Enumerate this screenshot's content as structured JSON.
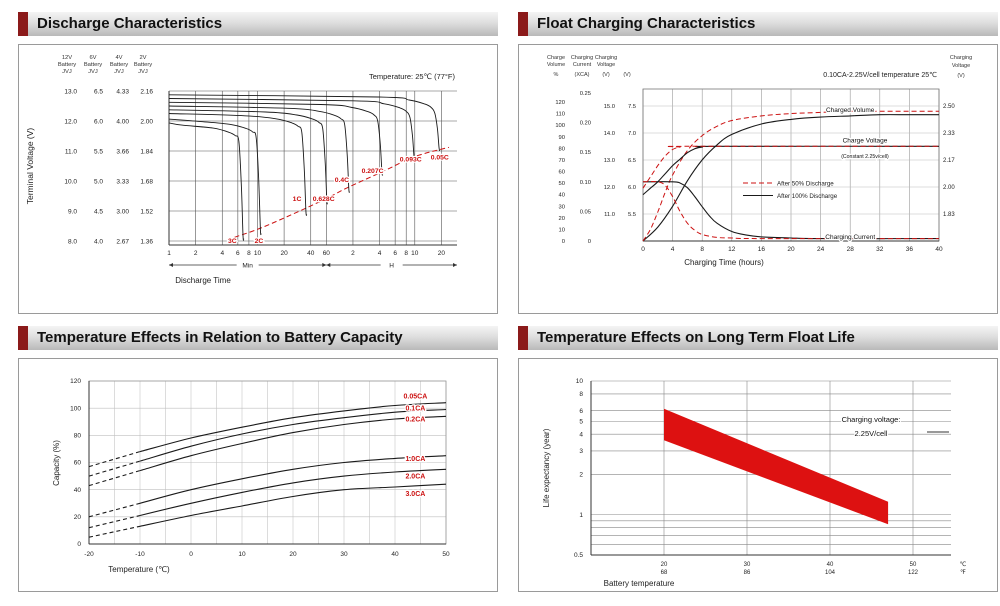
{
  "colors": {
    "accent": "#8b1a1a",
    "curve": "#1a1a1a",
    "red": "#cc1111",
    "band": "#dd1111"
  },
  "panels": [
    {
      "title": "Discharge Characteristics"
    },
    {
      "title": "Float Charging Characteristics"
    },
    {
      "title": "Temperature Effects in Relation to Battery Capacity"
    },
    {
      "title": "Temperature Effects on Long Term Float Life"
    }
  ],
  "chart_data": [
    {
      "type": "line",
      "title": "Discharge Characteristics",
      "note": "Temperature: 25℃ (77°F)",
      "xlabel": "Discharge Time",
      "ylabel": "Terminal Voltage (V)",
      "x_unit_groups": [
        {
          "label": "Min",
          "ticks": [
            1,
            2,
            4,
            6,
            8,
            10,
            20,
            40,
            60
          ]
        },
        {
          "label": "H",
          "ticks": [
            2,
            4,
            6,
            8,
            10,
            20
          ]
        }
      ],
      "voltage_scales": [
        {
          "header": [
            "12V",
            "Battery",
            "JVJ"
          ],
          "ticks": [
            "13.0",
            "12.0",
            "11.0",
            "10.0",
            "9.0",
            "8.0"
          ]
        },
        {
          "header": [
            "6V",
            "Battery",
            "JVJ"
          ],
          "ticks": [
            "6.5",
            "6.0",
            "5.5",
            "5.0",
            "4.5",
            "4.0"
          ]
        },
        {
          "header": [
            "4V",
            "Battery",
            "JVJ"
          ],
          "ticks": [
            "4.33",
            "4.00",
            "3.66",
            "3.33",
            "3.00",
            "2.67"
          ]
        },
        {
          "header": [
            "2V",
            "Battery",
            "JVJ"
          ],
          "ticks": [
            "2.16",
            "2.00",
            "1.84",
            "1.68",
            "1.52",
            "1.36"
          ]
        }
      ],
      "cell_voltage_range": [
        2.16,
        1.36
      ],
      "curves": [
        {
          "label": "3C",
          "end_min": 7,
          "v_start": 1.99,
          "v_end": 1.37,
          "label_at": [
            5.2,
            1.365
          ]
        },
        {
          "label": "2C",
          "end_min": 11,
          "v_start": 2.01,
          "v_end": 1.4,
          "label_at": [
            10.4,
            1.365
          ]
        },
        {
          "label": "1C",
          "end_min": 36,
          "v_start": 2.04,
          "v_end": 1.5,
          "label_at": [
            28,
            1.59
          ]
        },
        {
          "label": "0.628C",
          "end_min": 62,
          "v_start": 2.06,
          "v_end": 1.56,
          "label_at": [
            56,
            1.59
          ]
        },
        {
          "label": "0.4C",
          "end_min": 110,
          "v_start": 2.08,
          "v_end": 1.62,
          "label_at": [
            90,
            1.69
          ]
        },
        {
          "label": "0.207C",
          "end_min": 260,
          "v_start": 2.1,
          "v_end": 1.71,
          "label_at": [
            200,
            1.74
          ]
        },
        {
          "label": "0.093C",
          "end_min": 600,
          "v_start": 2.12,
          "v_end": 1.79,
          "label_at": [
            540,
            1.8
          ]
        },
        {
          "label": "0.05C",
          "end_min": 1150,
          "v_start": 2.14,
          "v_end": 1.84,
          "label_at": [
            1150,
            1.81
          ]
        }
      ],
      "final_voltage_envelope": [
        [
          5.5,
          1.38
        ],
        [
          11,
          1.43
        ],
        [
          30,
          1.52
        ],
        [
          62,
          1.59
        ],
        [
          110,
          1.65
        ],
        [
          260,
          1.73
        ],
        [
          600,
          1.81
        ],
        [
          1460,
          1.86
        ]
      ]
    },
    {
      "type": "line",
      "title": "Float Charging Characteristics",
      "note": "0.10CA-2.25V/cell  temperature 25℃",
      "xlabel": "Charging Time (hours)",
      "x_ticks": [
        0,
        4,
        8,
        12,
        16,
        20,
        24,
        28,
        32,
        36,
        40
      ],
      "left_axes": [
        {
          "header": [
            "Charge",
            "Volume"
          ],
          "unit": "%",
          "scale": "volume",
          "ticks": [
            "120",
            "110",
            "100",
            "90",
            "80",
            "70",
            "60",
            "50",
            "40",
            "30",
            "20",
            "10",
            "0"
          ]
        },
        {
          "header": [
            "Charging",
            "Current"
          ],
          "unit": "(XCA)",
          "scale": "current",
          "ticks": [
            "0.25",
            "0.20",
            "0.15",
            "0.10",
            "0.05",
            "0"
          ]
        },
        {
          "header": [
            "Charging",
            "Voltage"
          ],
          "unit": "(V)",
          "scale": "voltage",
          "ticks": [
            "15.0",
            "14.0",
            "13.0",
            "12.0",
            "11.0"
          ]
        },
        {
          "header": [],
          "unit": "(V)",
          "scale": "voltage",
          "ticks": [
            "7.5",
            "7.0",
            "6.5",
            "6.0",
            "5.5"
          ]
        }
      ],
      "right_axis": {
        "header": [
          "Charging",
          "Voltage"
        ],
        "unit": "(V)",
        "ticks": [
          "2.50",
          "2.33",
          "2.17",
          "2.00",
          "1.83"
        ]
      },
      "legend": [
        {
          "label": "After  50% Discharge",
          "style": "dashed-red"
        },
        {
          "label": "After 100% Discharge",
          "style": "solid"
        }
      ],
      "series": [
        {
          "name": "Charged Volume (after 100% discharge)",
          "axis": "volume",
          "style": "solid",
          "points": [
            [
              0,
              0
            ],
            [
              2,
              12
            ],
            [
              4,
              30
            ],
            [
              6,
              52
            ],
            [
              8,
              70
            ],
            [
              10,
              83
            ],
            [
              12,
              92
            ],
            [
              16,
              101
            ],
            [
              20,
              105
            ],
            [
              24,
              107
            ],
            [
              28,
              108
            ],
            [
              32,
              109
            ],
            [
              36,
              109
            ],
            [
              40,
              109
            ]
          ]
        },
        {
          "name": "Charged Volume (after 50% discharge)",
          "axis": "volume",
          "style": "dashed-red",
          "points": [
            [
              0,
              0
            ],
            [
              1,
              10
            ],
            [
              2,
              25
            ],
            [
              3,
              42
            ],
            [
              4,
              57
            ],
            [
              6,
              78
            ],
            [
              8,
              91
            ],
            [
              10,
              99
            ],
            [
              12,
              104
            ],
            [
              16,
              108
            ],
            [
              20,
              110
            ],
            [
              24,
              111
            ],
            [
              28,
              112
            ],
            [
              32,
              112
            ],
            [
              36,
              112
            ],
            [
              40,
              112
            ]
          ]
        },
        {
          "name": "Charge Voltage (after 100% discharge)",
          "axis": "voltage",
          "style": "solid",
          "points": [
            [
              0,
              1.95
            ],
            [
              1,
              1.99
            ],
            [
              2,
              2.03
            ],
            [
              3,
              2.08
            ],
            [
              4,
              2.13
            ],
            [
              5,
              2.17
            ],
            [
              6,
              2.21
            ],
            [
              7,
              2.235
            ],
            [
              8,
              2.245
            ],
            [
              10,
              2.25
            ],
            [
              40,
              2.25
            ]
          ]
        },
        {
          "name": "Charge Voltage (after 50% discharge)",
          "axis": "voltage",
          "style": "dashed-red",
          "points": [
            [
              0,
              1.99
            ],
            [
              1,
              2.06
            ],
            [
              2,
              2.13
            ],
            [
              3,
              2.19
            ],
            [
              4,
              2.23
            ],
            [
              5,
              2.245
            ],
            [
              6,
              2.25
            ],
            [
              40,
              2.25
            ]
          ]
        },
        {
          "name": "Charging Current (after 100% discharge)",
          "axis": "current",
          "style": "solid",
          "points": [
            [
              0,
              0.1
            ],
            [
              4,
              0.1
            ],
            [
              5,
              0.098
            ],
            [
              6,
              0.09
            ],
            [
              7,
              0.075
            ],
            [
              8,
              0.058
            ],
            [
              9,
              0.042
            ],
            [
              10,
              0.03
            ],
            [
              12,
              0.016
            ],
            [
              14,
              0.01
            ],
            [
              16,
              0.007
            ],
            [
              20,
              0.005
            ],
            [
              24,
              0.004
            ],
            [
              40,
              0.004
            ]
          ]
        },
        {
          "name": "Charging Current (after 50% discharge)",
          "axis": "current",
          "style": "dashed-red",
          "points": [
            [
              0,
              0.1
            ],
            [
              2,
              0.1
            ],
            [
              3,
              0.094
            ],
            [
              4,
              0.075
            ],
            [
              5,
              0.05
            ],
            [
              6,
              0.03
            ],
            [
              7,
              0.018
            ],
            [
              8,
              0.011
            ],
            [
              10,
              0.006
            ],
            [
              12,
              0.005
            ],
            [
              16,
              0.004
            ],
            [
              40,
              0.004
            ]
          ]
        }
      ],
      "series_labels": [
        {
          "text": "Charged Volume",
          "h": 28,
          "v": 113,
          "axis": "volume",
          "fs": 6.5
        },
        {
          "text": "Charge Voltage",
          "h": 30,
          "v": 2.285,
          "axis": "voltage",
          "fs": 6.5
        },
        {
          "text": "(Constant 2.25v/cell)",
          "h": 30,
          "v": 2.19,
          "axis": "voltage",
          "fs": 5.2
        },
        {
          "text": "Charging Current",
          "h": 28,
          "v": 0.007,
          "axis": "current",
          "fs": 6.5
        }
      ]
    },
    {
      "type": "line",
      "title": "Temperature Effects in Relation to Battery Capacity",
      "xlabel": "Temperature (℃)",
      "ylabel": "Capacity (%)",
      "x_ticks": [
        -20,
        -10,
        0,
        10,
        20,
        30,
        40,
        50
      ],
      "y_ticks": [
        0,
        20,
        40,
        60,
        80,
        100,
        120
      ],
      "dashed_below_c": -10,
      "series": [
        {
          "name": "0.05CA",
          "label_at": [
            44,
            109
          ],
          "points": [
            [
              -20,
              57
            ],
            [
              -10,
              68
            ],
            [
              0,
              78
            ],
            [
              10,
              86
            ],
            [
              20,
              93
            ],
            [
              30,
              98
            ],
            [
              40,
              102
            ],
            [
              50,
              104
            ]
          ]
        },
        {
          "name": "0.1CA",
          "label_at": [
            44,
            100
          ],
          "points": [
            [
              -20,
              50
            ],
            [
              -10,
              61
            ],
            [
              0,
              72
            ],
            [
              10,
              81
            ],
            [
              20,
              88
            ],
            [
              30,
              93
            ],
            [
              40,
              97
            ],
            [
              50,
              99
            ]
          ]
        },
        {
          "name": "0.2CA",
          "label_at": [
            44,
            92
          ],
          "points": [
            [
              -20,
              43
            ],
            [
              -10,
              54
            ],
            [
              0,
              65
            ],
            [
              10,
              74
            ],
            [
              20,
              82
            ],
            [
              30,
              88
            ],
            [
              40,
              92
            ],
            [
              50,
              94
            ]
          ]
        },
        {
          "name": "1.0CA",
          "label_at": [
            44,
            63
          ],
          "points": [
            [
              -20,
              20
            ],
            [
              -10,
              30
            ],
            [
              0,
              40
            ],
            [
              10,
              48
            ],
            [
              20,
              55
            ],
            [
              30,
              60
            ],
            [
              40,
              63
            ],
            [
              50,
              65
            ]
          ]
        },
        {
          "name": "2.0CA",
          "label_at": [
            44,
            50
          ],
          "points": [
            [
              -20,
              12
            ],
            [
              -10,
              21
            ],
            [
              0,
              30
            ],
            [
              10,
              38
            ],
            [
              20,
              45
            ],
            [
              30,
              50
            ],
            [
              40,
              53
            ],
            [
              50,
              55
            ]
          ]
        },
        {
          "name": "3.0CA",
          "label_at": [
            44,
            37
          ],
          "points": [
            [
              -20,
              5
            ],
            [
              -10,
              13
            ],
            [
              0,
              21
            ],
            [
              10,
              28
            ],
            [
              20,
              35
            ],
            [
              30,
              40
            ],
            [
              40,
              42
            ],
            [
              50,
              44
            ]
          ]
        }
      ]
    },
    {
      "type": "band",
      "title": "Temperature Effects on Long Term Float Life",
      "xlabel": "Battery temperature",
      "ylabel": "Life expectancy (year)",
      "annotation": [
        "Charging voltage:",
        "2.25V/cell"
      ],
      "y_ticks": [
        10,
        8,
        6,
        5,
        4,
        3,
        2,
        1,
        0.5
      ],
      "y_minor_ticks": [
        0.9,
        0.8,
        0.7,
        0.6
      ],
      "x_ticks": [
        {
          "c": "20",
          "f": "68"
        },
        {
          "c": "30",
          "f": "86"
        },
        {
          "c": "40",
          "f": "104"
        },
        {
          "c": "50",
          "f": "122"
        }
      ],
      "x_units": {
        "c": "℃",
        "f": "℉"
      },
      "band": {
        "points_top": [
          [
            20,
            6.2
          ],
          [
            47,
            1.25
          ]
        ],
        "points_bottom": [
          [
            20,
            3.6
          ],
          [
            47,
            0.85
          ]
        ]
      }
    }
  ]
}
